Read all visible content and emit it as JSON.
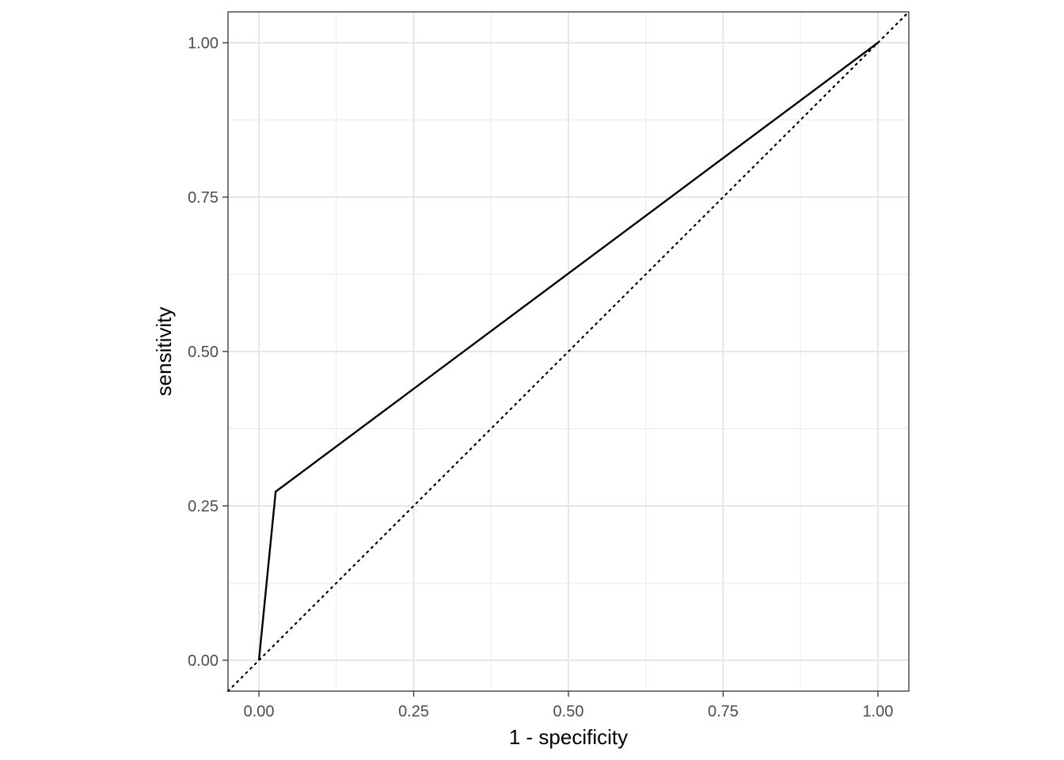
{
  "chart_data": {
    "type": "line",
    "title": "",
    "xlabel": "1 - specificity",
    "ylabel": "sensitivity",
    "xlim": [
      -0.05,
      1.05
    ],
    "ylim": [
      -0.05,
      1.05
    ],
    "x_ticks": [
      0,
      0.25,
      0.5,
      0.75,
      1
    ],
    "x_tick_labels": [
      "0.00",
      "0.25",
      "0.50",
      "0.75",
      "1.00"
    ],
    "y_ticks": [
      0,
      0.25,
      0.5,
      0.75,
      1
    ],
    "y_tick_labels": [
      "0.00",
      "0.25",
      "0.50",
      "0.75",
      "1.00"
    ],
    "grid": true,
    "legend": "none",
    "series": [
      {
        "x": [
          0,
          0.027,
          1
        ],
        "y": [
          0,
          0.273,
          1
        ],
        "style": "solid",
        "color": "#000000"
      }
    ],
    "reference_line": {
      "x": [
        -0.05,
        1.05
      ],
      "y": [
        -0.05,
        1.05
      ],
      "style": "dotted",
      "color": "#000000"
    }
  }
}
